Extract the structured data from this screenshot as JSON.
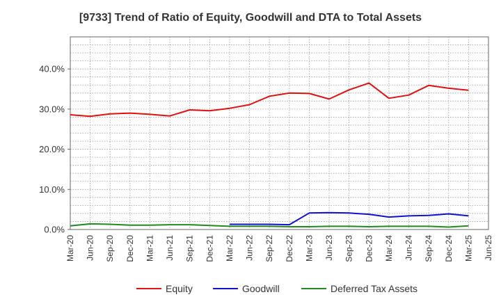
{
  "chart_data": {
    "type": "line",
    "title": "[9733]  Trend of Ratio of Equity, Goodwill and DTA to Total Assets",
    "xlabel": "",
    "ylabel": "",
    "ylim": [
      0,
      48
    ],
    "yticks": [
      0,
      10,
      20,
      30,
      40
    ],
    "ytick_labels": [
      "0.0%",
      "10.0%",
      "20.0%",
      "30.0%",
      "40.0%"
    ],
    "categories": [
      "Mar-20",
      "Jun-20",
      "Sep-20",
      "Dec-20",
      "Mar-21",
      "Jun-21",
      "Sep-21",
      "Dec-21",
      "Mar-22",
      "Jun-22",
      "Sep-22",
      "Dec-22",
      "Mar-23",
      "Jun-23",
      "Sep-23",
      "Dec-23",
      "Mar-24",
      "Jun-24",
      "Sep-24",
      "Dec-24",
      "Mar-25",
      "Jun-25"
    ],
    "grid": true,
    "legend_position": "bottom",
    "series": [
      {
        "name": "Equity",
        "color": "#dd1111",
        "values": [
          28.6,
          28.2,
          28.8,
          29.0,
          28.7,
          28.3,
          29.8,
          29.6,
          30.2,
          31.1,
          33.2,
          34.0,
          33.9,
          32.5,
          34.8,
          36.5,
          32.7,
          33.5,
          35.9,
          35.2,
          34.7,
          null
        ]
      },
      {
        "name": "Goodwill",
        "color": "#1111cc",
        "values": [
          null,
          null,
          null,
          null,
          null,
          null,
          null,
          null,
          1.3,
          1.3,
          1.3,
          1.2,
          4.1,
          4.2,
          4.1,
          3.8,
          3.1,
          3.4,
          3.5,
          3.9,
          3.4,
          null
        ]
      },
      {
        "name": "Deferred Tax Assets",
        "color": "#228822",
        "values": [
          0.9,
          1.4,
          1.3,
          1.1,
          1.1,
          1.2,
          1.2,
          1.0,
          0.8,
          0.8,
          0.8,
          0.7,
          0.7,
          0.8,
          0.8,
          0.7,
          0.8,
          0.8,
          0.8,
          0.6,
          0.9,
          null
        ]
      }
    ]
  }
}
